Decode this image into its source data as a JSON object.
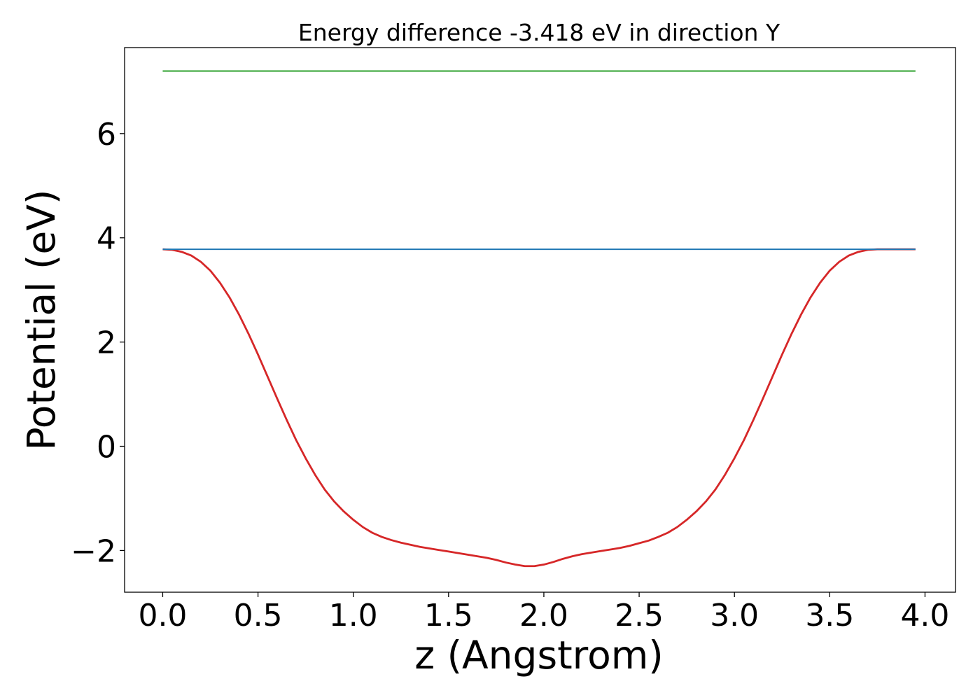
{
  "chart_data": {
    "type": "line",
    "title": "Energy difference -3.418 eV in direction Y",
    "xlabel": "z (Angstrom)",
    "ylabel": "Potential (eV)",
    "xlim": [
      -0.2,
      4.16
    ],
    "ylim": [
      -2.8,
      7.65
    ],
    "xticks": [
      0.0,
      0.5,
      1.0,
      1.5,
      2.0,
      2.5,
      3.0,
      3.5,
      4.0
    ],
    "xtick_labels": [
      "0.0",
      "0.5",
      "1.0",
      "1.5",
      "2.0",
      "2.5",
      "3.0",
      "3.5",
      "4.0"
    ],
    "yticks": [
      -2,
      0,
      2,
      4,
      6
    ],
    "ytick_labels": [
      "−2",
      "0",
      "2",
      "4",
      "6"
    ],
    "grid": false,
    "legend": "none",
    "series": [
      {
        "color": "#d62728",
        "x": [
          0.0,
          0.05,
          0.1,
          0.15,
          0.2,
          0.25,
          0.3,
          0.35,
          0.4,
          0.45,
          0.5,
          0.55,
          0.6,
          0.65,
          0.7,
          0.75,
          0.8,
          0.85,
          0.9,
          0.95,
          1.0,
          1.05,
          1.1,
          1.15,
          1.2,
          1.25,
          1.3,
          1.35,
          1.4,
          1.45,
          1.5,
          1.55,
          1.6,
          1.65,
          1.7,
          1.75,
          1.8,
          1.85,
          1.9,
          1.95,
          2.0,
          2.05,
          2.1,
          2.15,
          2.2,
          2.25,
          2.3,
          2.35,
          2.4,
          2.45,
          2.5,
          2.55,
          2.6,
          2.65,
          2.7,
          2.75,
          2.8,
          2.85,
          2.9,
          2.95,
          3.0,
          3.05,
          3.1,
          3.15,
          3.2,
          3.25,
          3.3,
          3.35,
          3.4,
          3.45,
          3.5,
          3.55,
          3.6,
          3.65,
          3.7,
          3.75,
          3.8,
          3.85,
          3.9,
          3.95
        ],
        "values": [
          3.78,
          3.77,
          3.73,
          3.66,
          3.54,
          3.37,
          3.14,
          2.86,
          2.53,
          2.16,
          1.76,
          1.34,
          0.92,
          0.51,
          0.12,
          -0.23,
          -0.55,
          -0.83,
          -1.06,
          -1.25,
          -1.41,
          -1.55,
          -1.66,
          -1.74,
          -1.8,
          -1.85,
          -1.89,
          -1.93,
          -1.96,
          -1.99,
          -2.02,
          -2.05,
          -2.08,
          -2.11,
          -2.14,
          -2.18,
          -2.23,
          -2.27,
          -2.3,
          -2.3,
          -2.27,
          -2.22,
          -2.16,
          -2.11,
          -2.07,
          -2.04,
          -2.01,
          -1.98,
          -1.95,
          -1.91,
          -1.86,
          -1.81,
          -1.74,
          -1.66,
          -1.55,
          -1.41,
          -1.25,
          -1.06,
          -0.83,
          -0.55,
          -0.23,
          0.12,
          0.51,
          0.92,
          1.34,
          1.76,
          2.16,
          2.53,
          2.86,
          3.14,
          3.37,
          3.54,
          3.66,
          3.73,
          3.77,
          3.78,
          3.78,
          3.78,
          3.78,
          3.78
        ]
      },
      {
        "color": "#1f77b4",
        "x": [
          0.0,
          3.95
        ],
        "values": [
          3.78,
          3.78
        ]
      },
      {
        "color": "#2ca02c",
        "x": [
          0.0,
          3.95
        ],
        "values": [
          7.2,
          7.2
        ]
      }
    ]
  }
}
